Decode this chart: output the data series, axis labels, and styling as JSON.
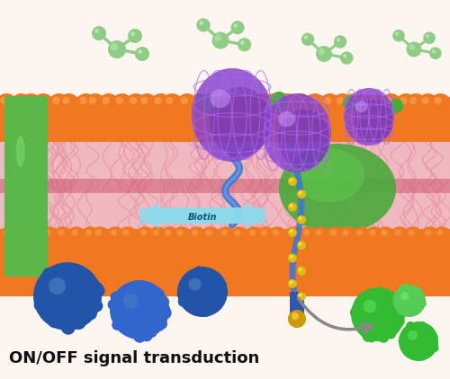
{
  "figsize": [
    5.0,
    4.22
  ],
  "dpi": 100,
  "bg_color": "#ffffff",
  "orange": "#f07820",
  "pink_tail": "#e8a0b0",
  "pink_dark": "#d06878",
  "green_panel": "#5ab84a",
  "green_blob": "#4aaa3a",
  "purple": "#8844cc",
  "purple_dark": "#5522aa",
  "lt_green_mol": "#90cc88",
  "blue_sph": "#2255aa",
  "blue_sph2": "#3366cc",
  "green_sph": "#33bb33",
  "cyan_arr": "#88ddee",
  "gray_arr": "#888888",
  "gold": "#ccaa00",
  "gold2": "#ddbb11",
  "blue_stalk": "#4477cc",
  "text_label": "ON/OFF signal transduction",
  "text_fontsize": 13,
  "text_color": "#111111"
}
